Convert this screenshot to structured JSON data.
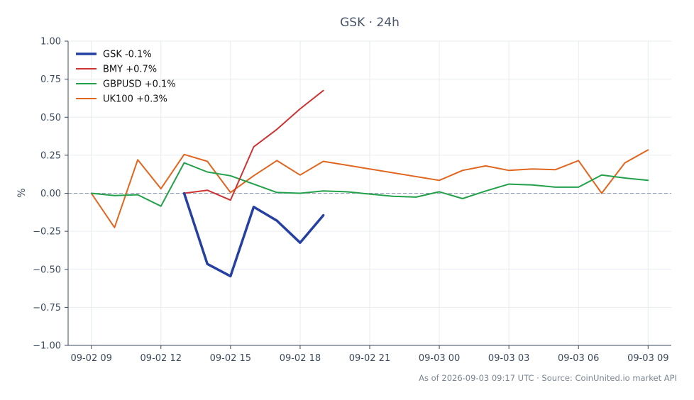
{
  "chart_data": {
    "type": "line",
    "title": "GSK · 24h",
    "ylabel": "%",
    "xlabel": "",
    "ylim": [
      -1.0,
      1.0
    ],
    "yticks": [
      1.0,
      0.75,
      0.5,
      0.25,
      0.0,
      -0.25,
      -0.5,
      -0.75,
      -1.0
    ],
    "ytick_labels": [
      "1.00",
      "0.75",
      "0.50",
      "0.25",
      "0.00",
      "−0.25",
      "−0.50",
      "−0.75",
      "−1.00"
    ],
    "xlim": [
      "2026-09-02 08:00",
      "2026-09-03 10:00"
    ],
    "xticks": [
      "2026-09-02 09:00",
      "2026-09-02 12:00",
      "2026-09-02 15:00",
      "2026-09-02 18:00",
      "2026-09-02 21:00",
      "2026-09-03 00:00",
      "2026-09-03 03:00",
      "2026-09-03 06:00",
      "2026-09-03 09:00"
    ],
    "xtick_labels": [
      "09-02 09",
      "09-02 12",
      "09-02 15",
      "09-02 18",
      "09-02 21",
      "09-03 00",
      "09-03 03",
      "09-03 06",
      "09-03 09"
    ],
    "grid": true,
    "zero_line": true,
    "legend_position": "top-left",
    "series": [
      {
        "name": "GSK -0.1%",
        "color": "#2540a0",
        "x": [
          "2026-09-02 13:00",
          "2026-09-02 14:00",
          "2026-09-02 15:00",
          "2026-09-02 16:00",
          "2026-09-02 17:00",
          "2026-09-02 18:00",
          "2026-09-02 19:00"
        ],
        "values": [
          0.0,
          -0.465,
          -0.545,
          -0.09,
          -0.18,
          -0.325,
          -0.145
        ]
      },
      {
        "name": "BMY +0.7%",
        "color": "#cc3333",
        "x": [
          "2026-09-02 13:00",
          "2026-09-02 14:00",
          "2026-09-02 15:00",
          "2026-09-02 16:00",
          "2026-09-02 17:00",
          "2026-09-02 18:00",
          "2026-09-02 19:00"
        ],
        "values": [
          0.0,
          0.02,
          -0.045,
          0.305,
          0.42,
          0.555,
          0.675
        ]
      },
      {
        "name": "GBPUSD +0.1%",
        "color": "#22a04a",
        "x": [
          "2026-09-02 09:00",
          "2026-09-02 10:00",
          "2026-09-02 11:00",
          "2026-09-02 12:00",
          "2026-09-02 13:00",
          "2026-09-02 14:00",
          "2026-09-02 15:00",
          "2026-09-02 16:00",
          "2026-09-02 17:00",
          "2026-09-02 18:00",
          "2026-09-02 19:00",
          "2026-09-02 20:00",
          "2026-09-02 21:00",
          "2026-09-02 22:00",
          "2026-09-02 23:00",
          "2026-09-03 00:00",
          "2026-09-03 01:00",
          "2026-09-03 02:00",
          "2026-09-03 03:00",
          "2026-09-03 04:00",
          "2026-09-03 05:00",
          "2026-09-03 06:00",
          "2026-09-03 07:00",
          "2026-09-03 08:00",
          "2026-09-03 09:00"
        ],
        "values": [
          0.0,
          -0.015,
          -0.01,
          -0.085,
          0.2,
          0.14,
          0.115,
          0.06,
          0.005,
          0.0,
          0.015,
          0.01,
          -0.005,
          -0.02,
          -0.025,
          0.01,
          -0.035,
          0.015,
          0.06,
          0.055,
          0.04,
          0.04,
          0.12,
          0.1,
          0.085
        ]
      },
      {
        "name": "UK100 +0.3%",
        "color": "#e0661f",
        "x": [
          "2026-09-02 09:00",
          "2026-09-02 10:00",
          "2026-09-02 11:00",
          "2026-09-02 12:00",
          "2026-09-02 13:00",
          "2026-09-02 14:00",
          "2026-09-02 15:00",
          "2026-09-02 16:00",
          "2026-09-02 17:00",
          "2026-09-02 18:00",
          "2026-09-02 19:00",
          "2026-09-03 00:00",
          "2026-09-03 01:00",
          "2026-09-03 02:00",
          "2026-09-03 03:00",
          "2026-09-03 04:00",
          "2026-09-03 05:00",
          "2026-09-03 06:00",
          "2026-09-03 07:00",
          "2026-09-03 08:00",
          "2026-09-03 09:00"
        ],
        "values": [
          0.0,
          -0.225,
          0.22,
          0.03,
          0.255,
          0.21,
          0.005,
          0.115,
          0.215,
          0.12,
          0.21,
          0.085,
          0.15,
          0.18,
          0.15,
          0.16,
          0.155,
          0.215,
          0.0,
          0.2,
          0.285
        ]
      }
    ]
  },
  "footer": {
    "text": "As of 2026-09-03 09:17 UTC · Source: CoinUnited.io market API"
  }
}
